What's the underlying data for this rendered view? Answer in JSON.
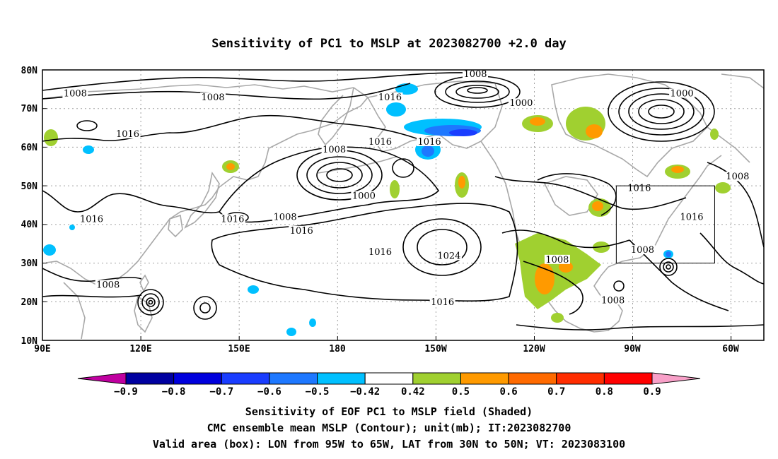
{
  "title": "Sensitivity of PC1 to MSLP at 2023082700 +2.0 day",
  "map": {
    "lat_ticks": [
      "80N",
      "70N",
      "60N",
      "50N",
      "40N",
      "30N",
      "20N",
      "10N"
    ],
    "lon_ticks": [
      "90E",
      "120E",
      "150E",
      "180",
      "150W",
      "120W",
      "90W",
      "60W"
    ],
    "extent": {
      "lon_west": 90,
      "lon_east": 310,
      "lat_south": 10,
      "lat_north": 80
    },
    "valid_box": {
      "lon_from": "95W",
      "lon_to": "65W",
      "lat_from": "30N",
      "lat_to": "50N"
    },
    "contour_labels": [
      {
        "text": "1008",
        "lon": 100,
        "lat": 73.5
      },
      {
        "text": "1008",
        "lon": 142,
        "lat": 72.5
      },
      {
        "text": "1008",
        "lon": 222,
        "lat": 78.5
      },
      {
        "text": "1000",
        "lon": 236,
        "lat": 71
      },
      {
        "text": "1000",
        "lon": 285,
        "lat": 73.5
      },
      {
        "text": "1016",
        "lon": 196,
        "lat": 72.5
      },
      {
        "text": "1016",
        "lon": 116,
        "lat": 63
      },
      {
        "text": "1016",
        "lon": 193,
        "lat": 61
      },
      {
        "text": "1016",
        "lon": 208,
        "lat": 61
      },
      {
        "text": "1008",
        "lon": 179,
        "lat": 59
      },
      {
        "text": "1000",
        "lon": 188,
        "lat": 47
      },
      {
        "text": "1016",
        "lon": 272,
        "lat": 49
      },
      {
        "text": "1008",
        "lon": 302,
        "lat": 52
      },
      {
        "text": "1016",
        "lon": 288,
        "lat": 41.5
      },
      {
        "text": "1016",
        "lon": 105,
        "lat": 41
      },
      {
        "text": "1016",
        "lon": 148,
        "lat": 41
      },
      {
        "text": "1008",
        "lon": 164,
        "lat": 41.5
      },
      {
        "text": "1016",
        "lon": 169,
        "lat": 38
      },
      {
        "text": "1016",
        "lon": 193,
        "lat": 32.5
      },
      {
        "text": "1024",
        "lon": 214,
        "lat": 31.5
      },
      {
        "text": "1008",
        "lon": 110,
        "lat": 24
      },
      {
        "text": "1008",
        "lon": 247,
        "lat": 30.5
      },
      {
        "text": "1008",
        "lon": 273,
        "lat": 33
      },
      {
        "text": "1016",
        "lon": 212,
        "lat": 19.5
      },
      {
        "text": "1008",
        "lon": 264,
        "lat": 20
      }
    ]
  },
  "colorbar": {
    "labels": [
      "−0.9",
      "−0.8",
      "−0.7",
      "−0.6",
      "−0.5",
      "−0.42",
      "0.42",
      "0.5",
      "0.6",
      "0.7",
      "0.8",
      "0.9"
    ],
    "colors": [
      "#c000a0",
      "#0000a0",
      "#0000dd",
      "#1a3dff",
      "#1e78ff",
      "#00c0ff",
      "#ffffff",
      "#a0d030",
      "#ff9a00",
      "#ff6a00",
      "#ff2d00",
      "#ff0000",
      "#f8a0c8"
    ]
  },
  "caption": {
    "line1": "Sensitivity of EOF PC1 to MSLP field (Shaded)",
    "line2": "CMC ensemble mean MSLP (Contour); unit(mb); IT:2023082700",
    "line3": "Valid area (box): LON from 95W to 65W, LAT from 30N to 50N; VT: 2023083100"
  },
  "colors": {
    "land_outline": "#a8a8a8",
    "contour": "#000000",
    "grid": "#a0a0a0"
  }
}
